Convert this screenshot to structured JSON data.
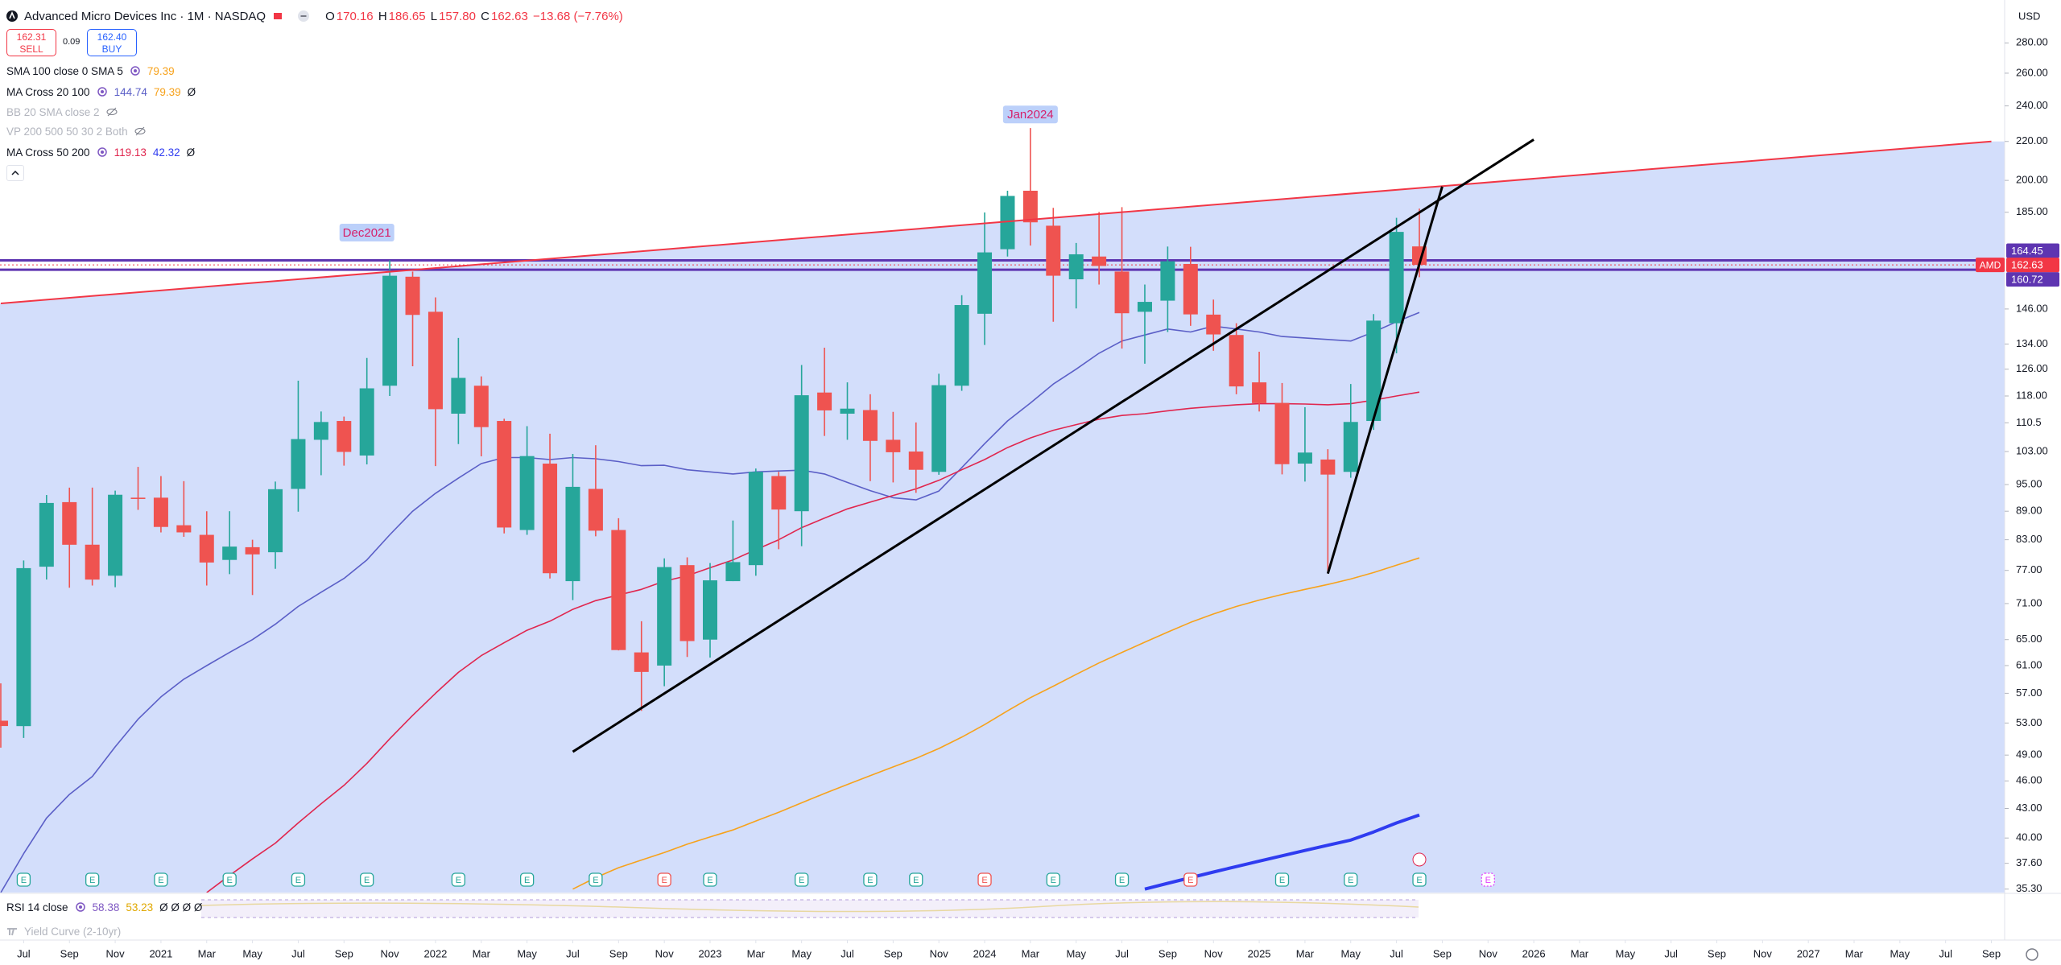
{
  "header": {
    "title": "Advanced Micro Devices Inc · 1M · NASDAQ",
    "ohlc": [
      [
        "O",
        "170.16"
      ],
      [
        "H",
        "186.65"
      ],
      [
        "L",
        "157.80"
      ],
      [
        "C",
        "162.63"
      ]
    ],
    "change": "−13.68 (−7.76%)",
    "sell": {
      "price": "162.31",
      "label": "SELL"
    },
    "spread": "0.09",
    "buy": {
      "price": "162.40",
      "label": "BUY"
    }
  },
  "indicators": [
    {
      "name": "SMA 100 close 0 SMA 5",
      "values": [
        "79.39"
      ],
      "colors": [
        "#f7a21b"
      ]
    },
    {
      "name": "MA Cross 20 100",
      "values": [
        "144.74",
        "79.39",
        "Ø"
      ],
      "colors": [
        "#5b5fc7",
        "#f7a21b",
        "#131722"
      ]
    },
    {
      "name": "BB 20 SMA close 2",
      "hidden": true
    },
    {
      "name": "VP 200 500 50 30 2 Both",
      "hidden": true
    },
    {
      "name": "MA Cross 50 200",
      "values": [
        "119.13",
        "42.32",
        "Ø"
      ],
      "colors": [
        "#e0264e",
        "#2f3cf0",
        "#131722"
      ]
    }
  ],
  "currency": "USD",
  "rsi": {
    "name": "RSI 14 close",
    "values": [
      "58.38",
      "53.23",
      "Ø Ø Ø Ø"
    ],
    "colors": [
      "#7e57c2",
      "#e0a800",
      "#131722"
    ]
  },
  "yield_curve": "Yield Curve (2-10yr)",
  "chart_data": {
    "type": "candlestick",
    "log_scale": true,
    "grid": false,
    "ylim": [
      35,
      311
    ],
    "yticks": [
      {
        "value": 280,
        "label": "280.00"
      },
      {
        "value": 260,
        "label": "260.00"
      },
      {
        "value": 240,
        "label": "240.00"
      },
      {
        "value": 220,
        "label": "220.00"
      },
      {
        "value": 200,
        "label": "200.00"
      },
      {
        "value": 185,
        "label": "185.00"
      },
      {
        "value": 146,
        "label": "146.00"
      },
      {
        "value": 134,
        "label": "134.00"
      },
      {
        "value": 126,
        "label": "126.00"
      },
      {
        "value": 118,
        "label": "118.00"
      },
      110.5,
      {
        "value": 103,
        "label": "103.00"
      },
      {
        "value": 95,
        "label": "95.00"
      },
      {
        "value": 89,
        "label": "89.00"
      },
      {
        "value": 83,
        "label": "83.00"
      },
      {
        "value": 77,
        "label": "77.00"
      },
      {
        "value": 71,
        "label": "71.00"
      },
      {
        "value": 65,
        "label": "65.00"
      },
      {
        "value": 61,
        "label": "61.00"
      },
      {
        "value": 57,
        "label": "57.00"
      },
      {
        "value": 53,
        "label": "53.00"
      },
      {
        "value": 49,
        "label": "49.00"
      },
      {
        "value": 46,
        "label": "46.00"
      },
      {
        "value": 43,
        "label": "43.00"
      },
      {
        "value": 40,
        "label": "40.00"
      },
      {
        "value": 37.6,
        "label": "37.60"
      },
      {
        "value": 35.3,
        "label": "35.30"
      }
    ],
    "xticks": [
      {
        "value": "2020-07",
        "label": "Jul"
      },
      {
        "value": "2020-09",
        "label": "Sep"
      },
      {
        "value": "2020-11",
        "label": "Nov"
      },
      {
        "value": "2021-01",
        "label": "2021"
      },
      {
        "value": "2021-03",
        "label": "Mar"
      },
      {
        "value": "2021-05",
        "label": "May"
      },
      {
        "value": "2021-07",
        "label": "Jul"
      },
      {
        "value": "2021-09",
        "label": "Sep"
      },
      {
        "value": "2021-11",
        "label": "Nov"
      },
      {
        "value": "2022-01",
        "label": "2022"
      },
      {
        "value": "2022-03",
        "label": "Mar"
      },
      {
        "value": "2022-05",
        "label": "May"
      },
      {
        "value": "2022-07",
        "label": "Jul"
      },
      {
        "value": "2022-09",
        "label": "Sep"
      },
      {
        "value": "2022-11",
        "label": "Nov"
      },
      {
        "value": "2023-01",
        "label": "2023"
      },
      {
        "value": "2023-03",
        "label": "Mar"
      },
      {
        "value": "2023-05",
        "label": "May"
      },
      {
        "value": "2023-07",
        "label": "Jul"
      },
      {
        "value": "2023-09",
        "label": "Sep"
      },
      {
        "value": "2023-11",
        "label": "Nov"
      },
      {
        "value": "2024-01",
        "label": "2024"
      },
      {
        "value": "2024-03",
        "label": "Mar"
      },
      {
        "value": "2024-05",
        "label": "May"
      },
      {
        "value": "2024-07",
        "label": "Jul"
      },
      {
        "value": "2024-09",
        "label": "Sep"
      },
      {
        "value": "2024-11",
        "label": "Nov"
      },
      {
        "value": "2025-01",
        "label": "2025"
      },
      {
        "value": "2025-03",
        "label": "Mar"
      },
      {
        "value": "2025-05",
        "label": "May"
      },
      {
        "value": "2025-07",
        "label": "Jul"
      },
      {
        "value": "2025-09",
        "label": "Sep"
      },
      {
        "value": "2025-11",
        "label": "Nov"
      },
      {
        "value": "2026-01",
        "label": "2026"
      },
      {
        "value": "2026-03",
        "label": "Mar"
      },
      {
        "value": "2026-05",
        "label": "May"
      },
      {
        "value": "2026-07",
        "label": "Jul"
      },
      {
        "value": "2026-09",
        "label": "Sep"
      },
      {
        "value": "2026-11",
        "label": "Nov"
      },
      {
        "value": "2027-01",
        "label": "2027"
      },
      {
        "value": "2027-03",
        "label": "Mar"
      },
      {
        "value": "2027-05",
        "label": "May"
      },
      {
        "value": "2027-07",
        "label": "Jul"
      },
      {
        "value": "2027-09",
        "label": "Sep"
      }
    ],
    "up_color": "#26a69a",
    "down_color": "#ef5350",
    "dates": [
      "2020-06",
      "2020-07",
      "2020-08",
      "2020-09",
      "2020-10",
      "2020-11",
      "2020-12",
      "2021-01",
      "2021-02",
      "2021-03",
      "2021-04",
      "2021-05",
      "2021-06",
      "2021-07",
      "2021-08",
      "2021-09",
      "2021-10",
      "2021-11",
      "2021-12",
      "2022-01",
      "2022-02",
      "2022-03",
      "2022-04",
      "2022-05",
      "2022-06",
      "2022-07",
      "2022-08",
      "2022-09",
      "2022-10",
      "2022-11",
      "2022-12",
      "2023-01",
      "2023-02",
      "2023-03",
      "2023-04",
      "2023-05",
      "2023-06",
      "2023-07",
      "2023-08",
      "2023-09",
      "2023-10",
      "2023-11",
      "2023-12",
      "2024-01",
      "2024-02",
      "2024-03",
      "2024-04",
      "2024-05",
      "2024-06",
      "2024-07",
      "2024-08",
      "2024-09",
      "2024-10",
      "2024-11",
      "2024-12",
      "2025-01",
      "2025-02",
      "2025-03",
      "2025-04",
      "2025-05",
      "2025-06",
      "2025-07",
      "2025-08"
    ],
    "open": [
      53.3,
      52.6,
      77.7,
      91.0,
      82.0,
      76.0,
      92.0,
      92.0,
      86.0,
      84.0,
      79.0,
      81.5,
      80.5,
      94.0,
      106.0,
      111.0,
      102.0,
      121.0,
      158.0,
      145.0,
      113.0,
      121.0,
      111.0,
      85.0,
      100.0,
      75.0,
      94.0,
      85.0,
      63.0,
      61.0,
      78.0,
      65.0,
      75.0,
      78.0,
      97.0,
      89.0,
      119.0,
      113.0,
      114.0,
      106.0,
      103.0,
      98.0,
      121.0,
      144.3,
      169.0,
      195.0,
      179.0,
      157.0,
      166.0,
      160.0,
      145.0,
      149.0,
      163.0,
      144.0,
      137.0,
      122.0,
      116.0,
      100.0,
      101.0,
      98.0,
      111.0,
      141.0,
      170.16
    ],
    "high": [
      58.4,
      78.9,
      92.6,
      94.3,
      94.3,
      93.6,
      99.2,
      97.0,
      95.8,
      89.0,
      89.0,
      83.0,
      95.7,
      122.5,
      113.6,
      112.2,
      129.5,
      164.5,
      160.0,
      150.2,
      136.0,
      123.8,
      111.6,
      109.6,
      107.6,
      102.4,
      104.6,
      87.5,
      68.0,
      79.3,
      79.5,
      78.4,
      87.0,
      98.8,
      98.0,
      127.3,
      132.8,
      122.0,
      118.5,
      113.5,
      110.6,
      124.6,
      151.0,
      184.9,
      195.0,
      227.3,
      187.0,
      171.6,
      185.1,
      187.3,
      155.0,
      170.1,
      170.0,
      149.4,
      141.0,
      131.5,
      121.8,
      114.8,
      103.6,
      121.5,
      144.2,
      182.5,
      186.65
    ],
    "low": [
      49.9,
      51.1,
      75.3,
      73.8,
      74.2,
      73.9,
      89.3,
      84.5,
      83.6,
      74.2,
      76.3,
      72.5,
      77.3,
      88.9,
      97.2,
      99.5,
      99.8,
      118.0,
      126.9,
      99.4,
      104.9,
      101.8,
      84.3,
      84.0,
      75.5,
      71.6,
      83.7,
      63.3,
      54.6,
      58.0,
      62.3,
      62.2,
      75.0,
      76.0,
      81.1,
      81.7,
      107.0,
      106.0,
      95.8,
      95.5,
      93.1,
      97.3,
      119.5,
      133.7,
      166.0,
      170.5,
      141.5,
      146.2,
      155.0,
      132.5,
      127.7,
      138.0,
      140.1,
      131.8,
      118.5,
      113.6,
      97.4,
      95.7,
      76.5,
      96.6,
      108.6,
      131.0,
      157.8
    ],
    "close": [
      52.61,
      77.43,
      90.82,
      81.99,
      75.29,
      92.66,
      91.71,
      85.64,
      84.51,
      78.5,
      81.62,
      80.08,
      93.93,
      106.19,
      110.72,
      102.9,
      120.23,
      158.37,
      143.9,
      114.25,
      123.34,
      109.34,
      85.52,
      101.86,
      76.47,
      94.47,
      84.86,
      63.36,
      60.06,
      77.63,
      64.77,
      75.15,
      78.58,
      98.01,
      89.37,
      118.21,
      113.91,
      114.4,
      105.72,
      102.82,
      98.5,
      121.16,
      147.41,
      167.69,
      192.53,
      180.49,
      158.38,
      166.9,
      162.21,
      144.48,
      148.56,
      164.08,
      144.08,
      137.18,
      120.79,
      115.95,
      99.86,
      102.74,
      97.35,
      110.73,
      141.9,
      176.31,
      162.63
    ],
    "series": [
      {
        "color": "#5b5fc7",
        "width": 1.6,
        "values": [
          35,
          38.5,
          42,
          44.5,
          46.5,
          50,
          53.5,
          56.5,
          59,
          61,
          63,
          65,
          67.5,
          70.5,
          73,
          75.5,
          79,
          84,
          89,
          93,
          96.5,
          100,
          101.5,
          101.5,
          101,
          101.5,
          101.2,
          100.5,
          99.5,
          99.6,
          98.5,
          98,
          97.5,
          98,
          98.2,
          98.4,
          97.5,
          95.5,
          93.6,
          92,
          91.5,
          93.5,
          99,
          105,
          111,
          116,
          121.5,
          126,
          131,
          135,
          137,
          139,
          138,
          140,
          139,
          138,
          136.5,
          136,
          135.5,
          135,
          138,
          141.5,
          144.74
        ]
      },
      {
        "color": "#f7a21b",
        "width": 1.6,
        "values": [
          null,
          null,
          null,
          null,
          null,
          null,
          null,
          null,
          null,
          null,
          null,
          null,
          null,
          null,
          null,
          null,
          null,
          null,
          null,
          null,
          null,
          null,
          null,
          null,
          null,
          35.3,
          36.3,
          37.2,
          37.9,
          38.6,
          39.4,
          40.1,
          40.8,
          41.7,
          42.6,
          43.6,
          44.6,
          45.6,
          46.6,
          47.6,
          48.6,
          49.8,
          51.2,
          52.8,
          54.6,
          56.4,
          58,
          59.7,
          61.4,
          63,
          64.6,
          66.2,
          67.8,
          69.2,
          70.5,
          71.6,
          72.6,
          73.5,
          74.4,
          75.4,
          76.6,
          78,
          79.39
        ]
      },
      {
        "color": "#e0264e",
        "width": 1.6,
        "values": [
          null,
          null,
          null,
          null,
          null,
          null,
          null,
          null,
          null,
          35,
          36.5,
          38,
          39.5,
          41.5,
          43.5,
          45.5,
          48,
          51,
          54,
          57,
          60,
          62.5,
          64.5,
          66.5,
          68,
          70,
          71.5,
          72.5,
          73.5,
          75,
          76,
          77.5,
          79,
          81,
          83,
          85.5,
          87.5,
          89.5,
          91,
          92.5,
          94,
          96,
          98.5,
          101,
          104,
          106.5,
          108.5,
          110,
          111.5,
          112.5,
          113,
          113.8,
          114.5,
          115,
          115.5,
          115.8,
          115.8,
          115.7,
          115.5,
          115.8,
          116.8,
          118,
          119.13
        ]
      },
      {
        "color": "#2f3cf0",
        "width": 4,
        "values": [
          null,
          null,
          null,
          null,
          null,
          null,
          null,
          null,
          null,
          null,
          null,
          null,
          null,
          null,
          null,
          null,
          null,
          null,
          null,
          null,
          null,
          null,
          null,
          null,
          null,
          null,
          null,
          null,
          null,
          null,
          null,
          null,
          null,
          null,
          null,
          null,
          null,
          null,
          null,
          null,
          null,
          null,
          null,
          null,
          null,
          null,
          null,
          null,
          null,
          null,
          35.3,
          35.8,
          36.3,
          36.8,
          37.3,
          37.8,
          38.3,
          38.8,
          39.3,
          39.8,
          40.6,
          41.5,
          42.32
        ]
      }
    ],
    "price_lines": [
      {
        "value": 164.45,
        "color": "#5e35b1"
      },
      {
        "value": 160.72,
        "color": "#5e35b1"
      }
    ],
    "last_price": {
      "symbol": "AMD",
      "value": 162.63,
      "color": "#f23645"
    },
    "drawings": [
      {
        "color": "#f23645",
        "width": 2,
        "fill": "#d3defb",
        "points": [
          {
            "date": "2020-06",
            "price": 148
          },
          {
            "date": "2027-09",
            "price": 220
          }
        ]
      },
      {
        "color": "#000000",
        "width": 3,
        "points": [
          {
            "date": "2022-07",
            "price": 49.4
          },
          {
            "date": "2026-01",
            "price": 221
          }
        ]
      },
      {
        "color": "#000000",
        "width": 3,
        "points": [
          {
            "date": "2025-04",
            "price": 76.4
          },
          {
            "date": "2025-09",
            "price": 197
          }
        ]
      }
    ],
    "annotations": [
      {
        "text": "Dec2021",
        "date": "2021-10",
        "price": 176
      },
      {
        "text": "Jan2024",
        "date": "2024-03",
        "price": 235
      }
    ],
    "earnings": {
      "label": "E",
      "dates": [
        "2020-07",
        "2020-10",
        "2021-01",
        "2021-04",
        "2021-07",
        "2021-10",
        "2022-02",
        "2022-05",
        "2022-08",
        "2022-11",
        "2023-01",
        "2023-05",
        "2023-08",
        "2023-10",
        "2024-01",
        "2024-04",
        "2024-07",
        "2024-10",
        "2025-02",
        "2025-05",
        "2025-08",
        "2025-11"
      ],
      "colors": [
        "#26a69a",
        "#26a69a",
        "#26a69a",
        "#26a69a",
        "#26a69a",
        "#26a69a",
        "#26a69a",
        "#26a69a",
        "#26a69a",
        "#ef5350",
        "#26a69a",
        "#26a69a",
        "#26a69a",
        "#26a69a",
        "#ef5350",
        "#26a69a",
        "#26a69a",
        "#ef5350",
        "#26a69a",
        "#26a69a",
        "#26a69a",
        "#e040fb"
      ]
    }
  }
}
